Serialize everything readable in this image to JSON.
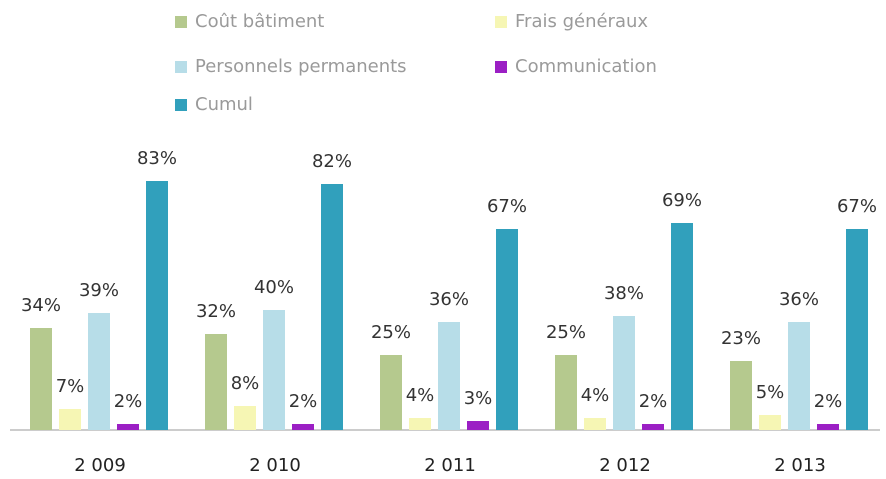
{
  "chart_data": {
    "type": "bar",
    "categories": [
      "2 009",
      "2 010",
      "2 011",
      "2 012",
      "2 013"
    ],
    "series": [
      {
        "name": "Coût bâtiment",
        "color": "#b5c98e",
        "values": [
          34,
          32,
          25,
          25,
          23
        ],
        "value_labels": [
          "34%",
          "32%",
          "25%",
          "25%",
          "23%"
        ]
      },
      {
        "name": "Frais généraux",
        "color": "#f6f6b4",
        "values": [
          7,
          8,
          4,
          4,
          5
        ],
        "value_labels": [
          "7%",
          "8%",
          "4%",
          "4%",
          "5%"
        ]
      },
      {
        "name": "Personnels permanents",
        "color": "#b7dde8",
        "values": [
          39,
          40,
          36,
          38,
          36
        ],
        "value_labels": [
          "39%",
          "40%",
          "36%",
          "38%",
          "36%"
        ]
      },
      {
        "name": "Communication",
        "color": "#9b1fc4",
        "values": [
          2,
          2,
          3,
          2,
          2
        ],
        "value_labels": [
          "2%",
          "2%",
          "3%",
          "2%",
          "2%"
        ]
      },
      {
        "name": "Cumul",
        "color": "#31a0bc",
        "values": [
          83,
          82,
          67,
          69,
          67
        ],
        "value_labels": [
          "83%",
          "82%",
          "67%",
          "69%",
          "67%"
        ]
      }
    ]
  }
}
